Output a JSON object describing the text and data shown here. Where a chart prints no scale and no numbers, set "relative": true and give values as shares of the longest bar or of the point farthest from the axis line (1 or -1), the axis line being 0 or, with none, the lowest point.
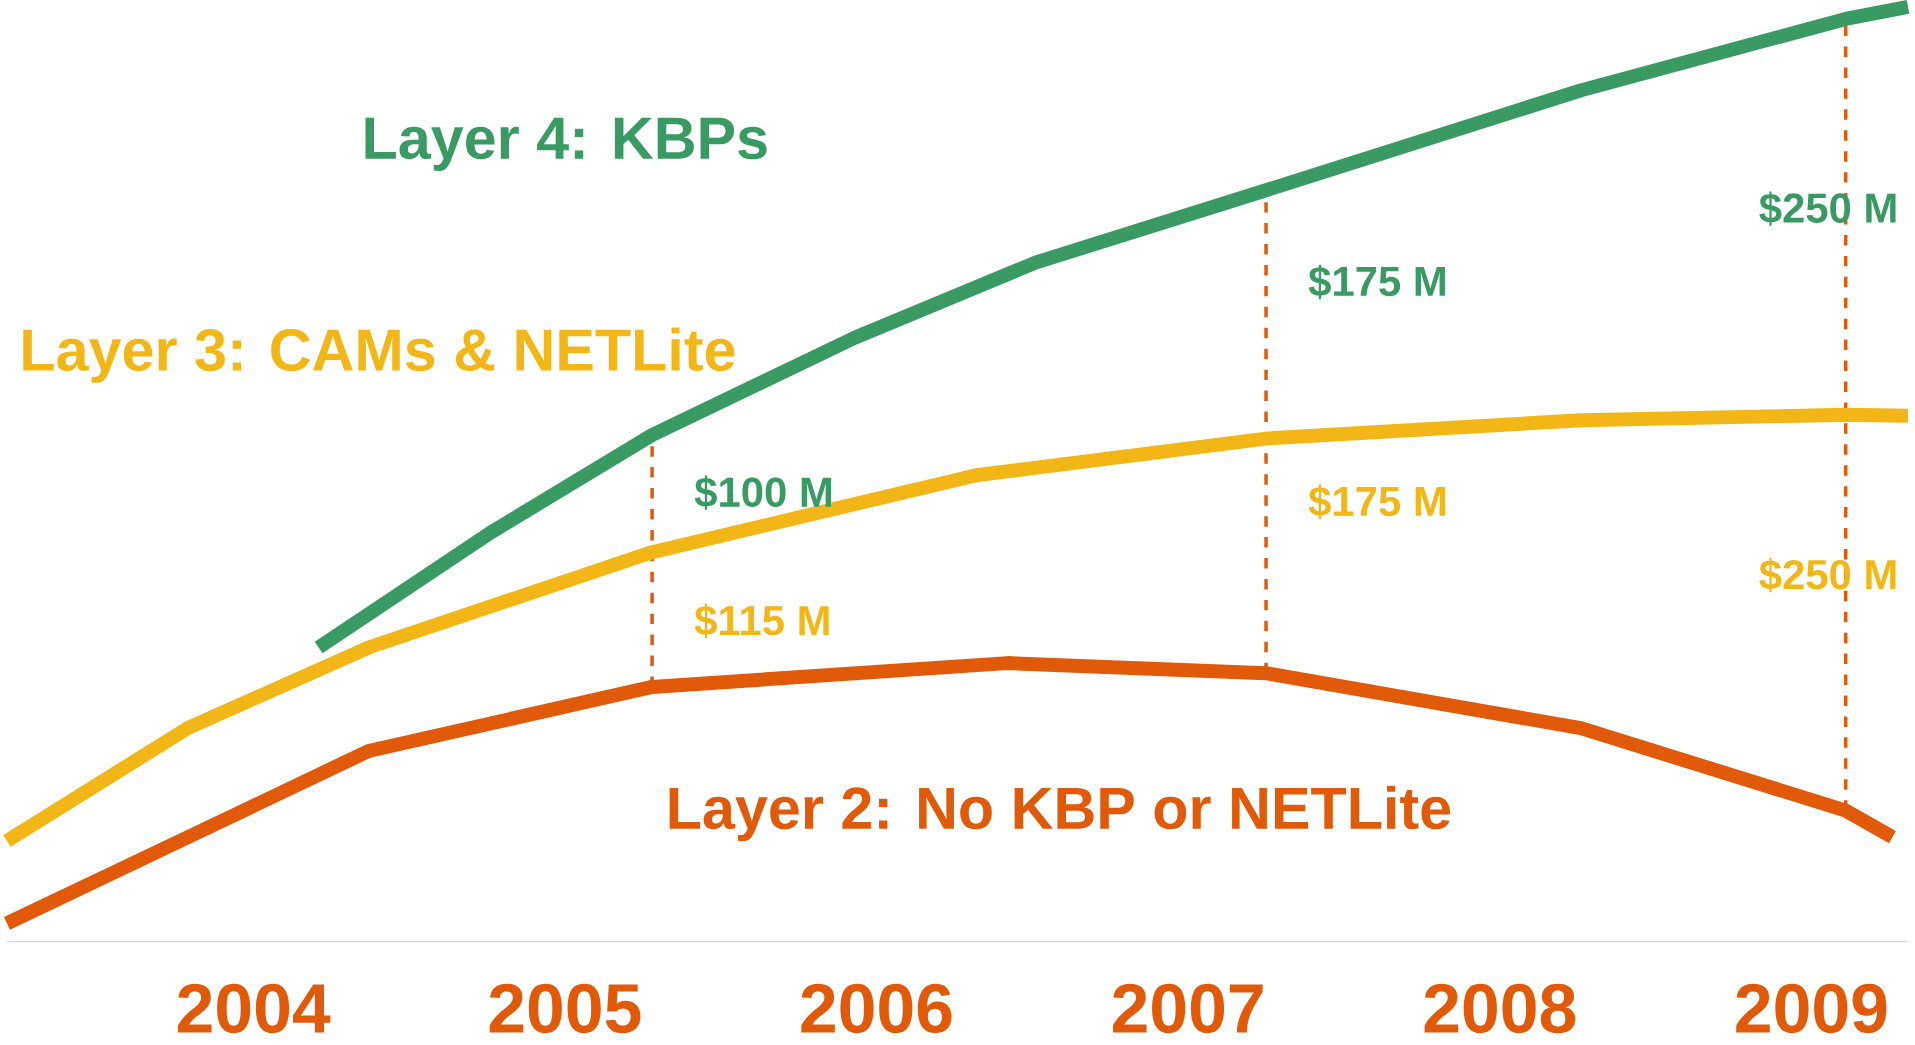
{
  "chart_data": {
    "type": "line",
    "relative": true,
    "legend": false,
    "grid": false,
    "marker": "none",
    "line_style": "solid",
    "xlim": [
      2003.21,
      2009.31
    ],
    "xticks": [
      2004,
      2005,
      2006,
      2007,
      2008,
      2009
    ],
    "series": [
      {
        "name": "Layer 4: KBPs",
        "color": "#3a9a64",
        "x": [
          2004.21,
          2004.76,
          2005.28,
          2005.93,
          2006.51,
          2007.25,
          2008.26,
          2009.11,
          2009.31
        ],
        "values": [
          0.301,
          0.426,
          0.533,
          0.639,
          0.721,
          0.8,
          0.909,
          0.987,
          1
        ]
      },
      {
        "name": "Layer 3: CAMs & NETLite",
        "color": "#f2b716",
        "x": [
          2003.21,
          2003.79,
          2004.37,
          2005.28,
          2006.32,
          2007.25,
          2008.26,
          2009.11,
          2009.31
        ],
        "values": [
          0.09,
          0.213,
          0.301,
          0.405,
          0.489,
          0.529,
          0.549,
          0.555,
          0.554
        ]
      },
      {
        "name": "Layer 2: No KBP or NETLite",
        "color": "#e05a0a",
        "x": [
          2003.21,
          2003.79,
          2004.37,
          2005.28,
          2006.42,
          2007.25,
          2008.26,
          2009.11,
          2009.26
        ],
        "values": [
          0,
          0.094,
          0.188,
          0.258,
          0.284,
          0.273,
          0.213,
          0.123,
          0.094
        ]
      }
    ],
    "annotations": [
      "$100 M",
      "$175 M",
      "$250 M",
      "$115 M",
      "$175 M",
      "$250 M"
    ],
    "ref_lines": [
      {
        "axis": "x",
        "value": 2005.28,
        "color": "#e05a0a",
        "line_style": "dashed"
      },
      {
        "axis": "x",
        "value": 2007.25,
        "color": "#e05a0a",
        "line_style": "dashed"
      },
      {
        "axis": "x",
        "value": 2009.11,
        "color": "#e05a0a",
        "line_style": "dashed"
      }
    ]
  }
}
